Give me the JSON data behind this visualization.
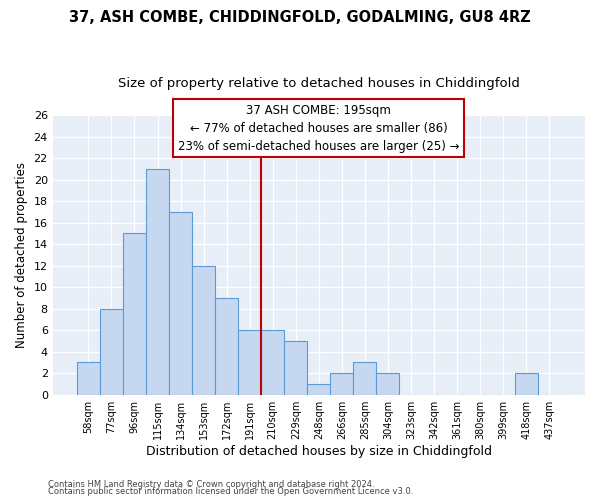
{
  "title": "37, ASH COMBE, CHIDDINGFOLD, GODALMING, GU8 4RZ",
  "subtitle": "Size of property relative to detached houses in Chiddingfold",
  "xlabel": "Distribution of detached houses by size in Chiddingfold",
  "ylabel": "Number of detached properties",
  "categories": [
    "58sqm",
    "77sqm",
    "96sqm",
    "115sqm",
    "134sqm",
    "153sqm",
    "172sqm",
    "191sqm",
    "210sqm",
    "229sqm",
    "248sqm",
    "266sqm",
    "285sqm",
    "304sqm",
    "323sqm",
    "342sqm",
    "361sqm",
    "380sqm",
    "399sqm",
    "418sqm",
    "437sqm"
  ],
  "values": [
    3,
    8,
    15,
    21,
    17,
    12,
    9,
    6,
    6,
    5,
    1,
    2,
    3,
    2,
    0,
    0,
    0,
    0,
    0,
    2,
    0
  ],
  "bar_color": "#c5d8f0",
  "bar_edgecolor": "#5b9bd5",
  "vline_x": 7.5,
  "vline_color": "#c00000",
  "annotation_line1": "37 ASH COMBE: 195sqm",
  "annotation_line2": "← 77% of detached houses are smaller (86)",
  "annotation_line3": "23% of semi-detached houses are larger (25) →",
  "annotation_box_color": "#c00000",
  "annotation_fontsize": 8.5,
  "ylim": [
    0,
    26
  ],
  "yticks": [
    0,
    2,
    4,
    6,
    8,
    10,
    12,
    14,
    16,
    18,
    20,
    22,
    24,
    26
  ],
  "footer1": "Contains HM Land Registry data © Crown copyright and database right 2024.",
  "footer2": "Contains public sector information licensed under the Open Government Licence v3.0.",
  "background_color": "#e8eef8",
  "title_fontsize": 10.5,
  "subtitle_fontsize": 9.5
}
